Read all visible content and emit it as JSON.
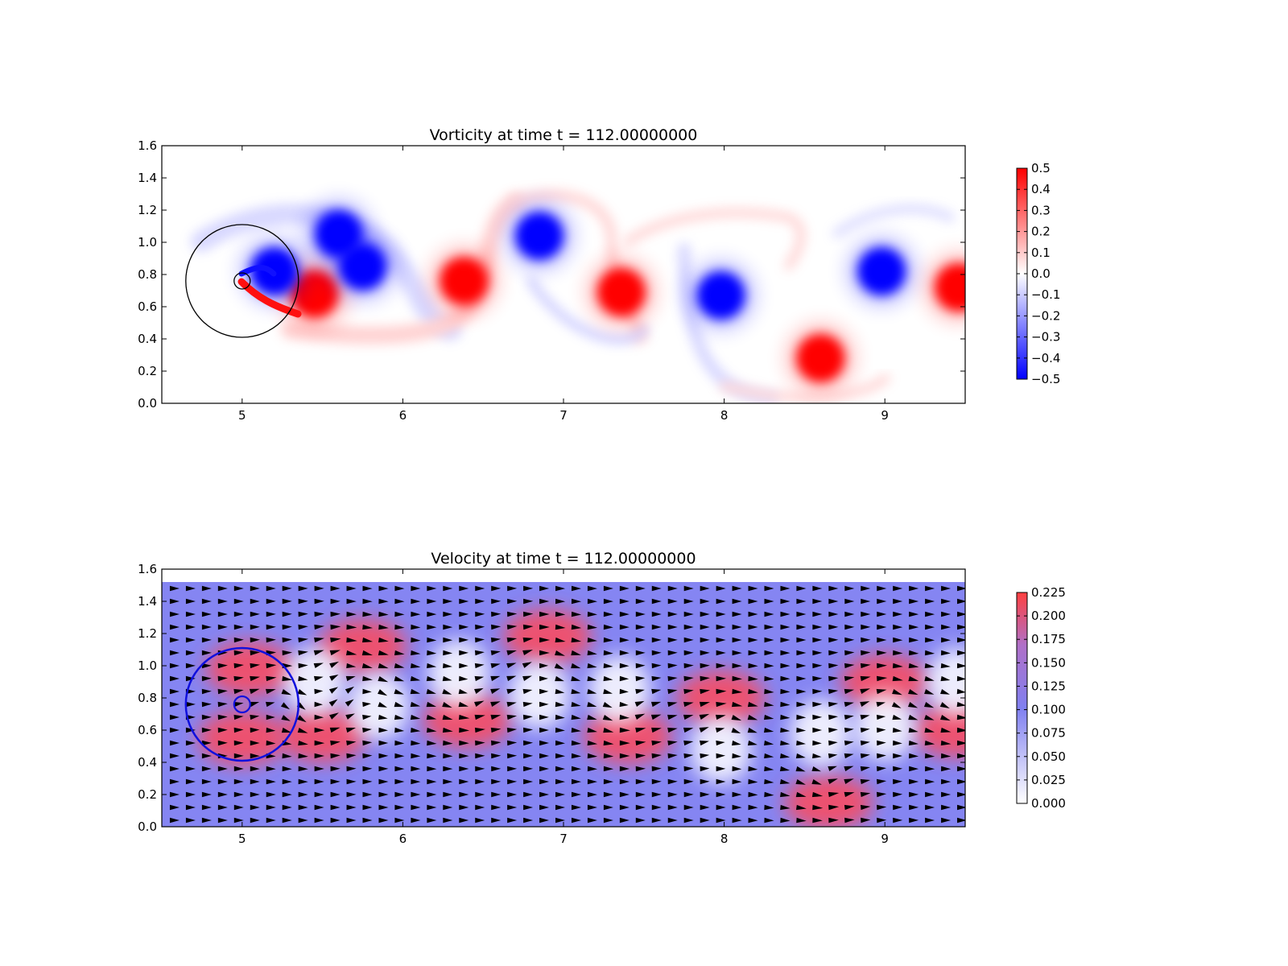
{
  "chart_data": [
    {
      "type": "heatmap",
      "title": "Vorticity at time t =   112.00000000",
      "xlim": [
        4.5,
        9.5
      ],
      "ylim": [
        0.0,
        1.6
      ],
      "xticks": [
        "5",
        "6",
        "7",
        "8",
        "9"
      ],
      "yticks": [
        "0.0",
        "0.2",
        "0.4",
        "0.6",
        "0.8",
        "1.0",
        "1.2",
        "1.4",
        "1.6"
      ],
      "colorbar": {
        "range": [
          -0.5,
          0.5
        ],
        "ticks": [
          "0.5",
          "0.4",
          "0.3",
          "0.2",
          "0.1",
          "0.0",
          "−0.1",
          "−0.2",
          "−0.3",
          "−0.4",
          "−0.5"
        ],
        "colors": {
          "low": "#0000ff",
          "mid": "#ffffff",
          "high": "#ff0000"
        }
      },
      "vortices": [
        {
          "x": 5.45,
          "y": 0.68,
          "w": 0.5
        },
        {
          "x": 5.6,
          "y": 1.05,
          "w": -0.5
        },
        {
          "x": 5.75,
          "y": 0.85,
          "w": -0.5
        },
        {
          "x": 5.2,
          "y": 0.82,
          "w": -0.5
        },
        {
          "x": 6.38,
          "y": 0.76,
          "w": 0.5
        },
        {
          "x": 6.85,
          "y": 1.04,
          "w": -0.5
        },
        {
          "x": 7.36,
          "y": 0.69,
          "w": 0.5
        },
        {
          "x": 7.98,
          "y": 0.67,
          "w": -0.5
        },
        {
          "x": 8.6,
          "y": 0.28,
          "w": 0.5
        },
        {
          "x": 8.98,
          "y": 0.82,
          "w": -0.5
        },
        {
          "x": 9.46,
          "y": 0.72,
          "w": 0.5
        }
      ],
      "circle": {
        "cx": 5.0,
        "cy": 0.76,
        "r": 0.35
      },
      "cylinder": {
        "cx": 5.0,
        "cy": 0.76,
        "r": 0.05
      }
    },
    {
      "type": "heatmap",
      "title": "Velocity at time t =   112.00000000",
      "xlim": [
        4.5,
        9.5
      ],
      "ylim": [
        0.0,
        1.6
      ],
      "xticks": [
        "5",
        "6",
        "7",
        "8",
        "9"
      ],
      "yticks": [
        "0.0",
        "0.2",
        "0.4",
        "0.6",
        "0.8",
        "1.0",
        "1.2",
        "1.4",
        "1.6"
      ],
      "colorbar": {
        "range": [
          0.0,
          0.225
        ],
        "ticks": [
          "0.225",
          "0.200",
          "0.175",
          "0.150",
          "0.125",
          "0.100",
          "0.075",
          "0.050",
          "0.025",
          "0.000"
        ],
        "colors": {
          "low": "#ffffff",
          "mid": "#8080f0",
          "high": "#ff4040"
        }
      },
      "field_top": 1.52,
      "background_speed": 0.1,
      "fast_regions": [
        {
          "x": 5.05,
          "y": 0.98,
          "speed": 0.2
        },
        {
          "x": 5.0,
          "y": 0.55,
          "speed": 0.2
        },
        {
          "x": 5.5,
          "y": 0.57,
          "speed": 0.2
        },
        {
          "x": 5.75,
          "y": 1.12,
          "speed": 0.19
        },
        {
          "x": 6.4,
          "y": 0.66,
          "speed": 0.2
        },
        {
          "x": 6.9,
          "y": 1.18,
          "speed": 0.22
        },
        {
          "x": 7.4,
          "y": 0.56,
          "speed": 0.2
        },
        {
          "x": 7.98,
          "y": 0.8,
          "speed": 0.21
        },
        {
          "x": 8.65,
          "y": 0.15,
          "speed": 0.225
        },
        {
          "x": 9.0,
          "y": 0.9,
          "speed": 0.2
        },
        {
          "x": 9.45,
          "y": 0.6,
          "speed": 0.2
        }
      ],
      "slow_regions": [
        {
          "x": 5.45,
          "y": 0.9
        },
        {
          "x": 5.85,
          "y": 0.75
        },
        {
          "x": 6.35,
          "y": 0.95
        },
        {
          "x": 6.85,
          "y": 0.82
        },
        {
          "x": 7.35,
          "y": 0.85
        },
        {
          "x": 7.98,
          "y": 0.48
        },
        {
          "x": 8.6,
          "y": 0.58
        },
        {
          "x": 9.0,
          "y": 0.62
        },
        {
          "x": 9.45,
          "y": 0.9
        }
      ],
      "circle": {
        "cx": 5.0,
        "cy": 0.76,
        "r": 0.35
      },
      "cylinder": {
        "cx": 5.0,
        "cy": 0.76,
        "r": 0.05
      }
    }
  ]
}
